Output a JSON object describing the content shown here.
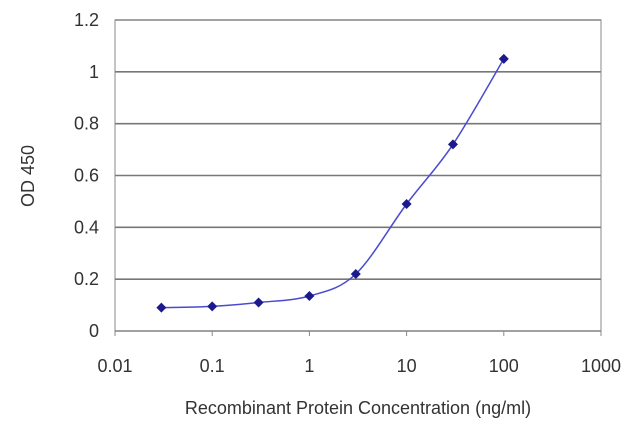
{
  "chart_data": {
    "type": "scatter",
    "title": "",
    "xlabel": "Recombinant Protein Concentration (ng/ml)",
    "ylabel": "OD 450",
    "xscale": "log",
    "xlim": [
      0.01,
      1000
    ],
    "ylim": [
      0,
      1.2
    ],
    "xticks": [
      "0.01",
      "0.1",
      "1",
      "10",
      "100",
      "1000"
    ],
    "yticks": [
      "0",
      "0.2",
      "0.4",
      "0.6",
      "0.8",
      "1",
      "1.2"
    ],
    "grid": "horizontal",
    "legend": "none",
    "series": [
      {
        "x": [
          0.03,
          0.1,
          0.3,
          1,
          3,
          10,
          30,
          100
        ],
        "y": [
          0.09,
          0.095,
          0.11,
          0.135,
          0.22,
          0.49,
          0.72,
          1.05
        ],
        "color": "#1a1a8c",
        "line": "smooth"
      }
    ]
  }
}
